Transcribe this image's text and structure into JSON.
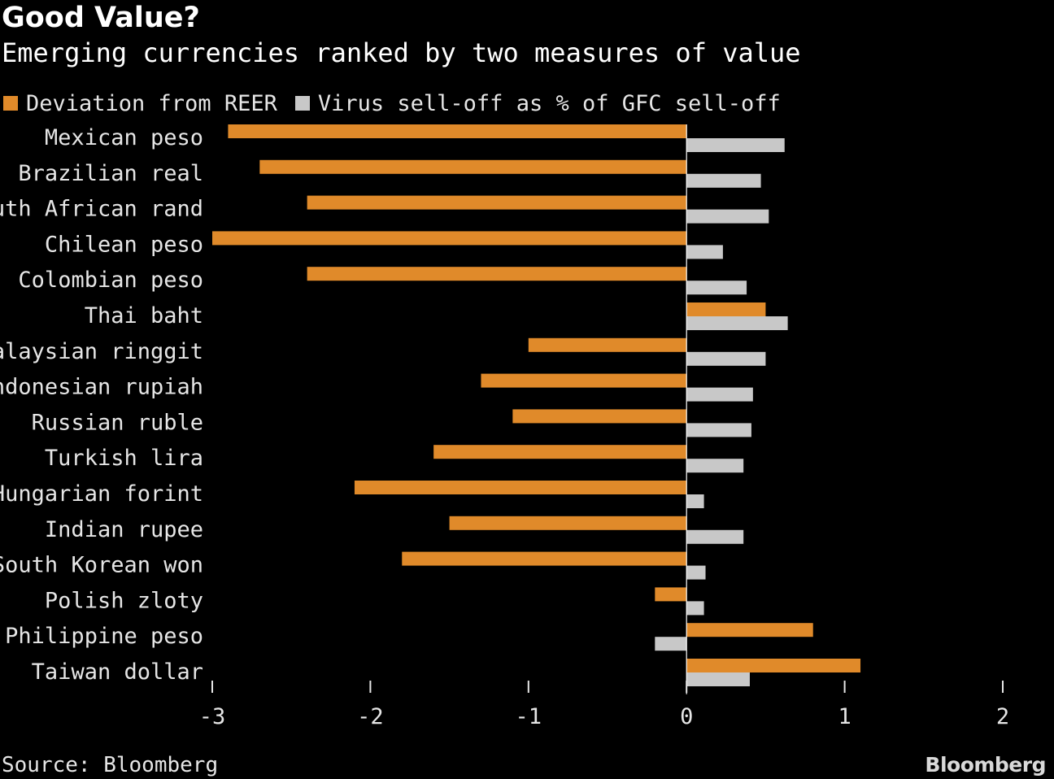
{
  "chart_data": {
    "type": "bar",
    "orientation": "horizontal",
    "title": "Good Value?",
    "subtitle": "Emerging currencies ranked by two measures of value",
    "categories": [
      "Mexican peso",
      "Brazilian real",
      "South African rand",
      "Chilean peso",
      "Colombian peso",
      "Thai baht",
      "Malaysian ringgit",
      "Indonesian rupiah",
      "Russian ruble",
      "Turkish lira",
      "Hungarian forint",
      "Indian rupee",
      "South Korean won",
      "Polish zloty",
      "Philippine peso",
      "Taiwan dollar"
    ],
    "series": [
      {
        "name": "Deviation from REER",
        "color": "#e08a2a",
        "values": [
          -2.9,
          -2.7,
          -2.4,
          -3.0,
          -2.4,
          0.5,
          -1.0,
          -1.3,
          -1.1,
          -1.6,
          -2.1,
          -1.5,
          -1.8,
          -0.2,
          0.8,
          1.1
        ]
      },
      {
        "name": "Virus sell-off as % of GFC sell-off",
        "color": "#c8c8c8",
        "values": [
          0.62,
          0.47,
          0.52,
          0.23,
          0.38,
          0.64,
          0.5,
          0.42,
          0.41,
          0.36,
          0.11,
          0.36,
          0.12,
          0.11,
          -0.2,
          0.4
        ]
      }
    ],
    "xlim": [
      -3,
      2
    ],
    "xticks": [
      "-3",
      "-2",
      "-1",
      "0",
      "1",
      "2"
    ],
    "grid": false,
    "legend_position": "top-left"
  },
  "footer": {
    "source": "Source: Bloomberg",
    "brand": "Bloomberg"
  }
}
